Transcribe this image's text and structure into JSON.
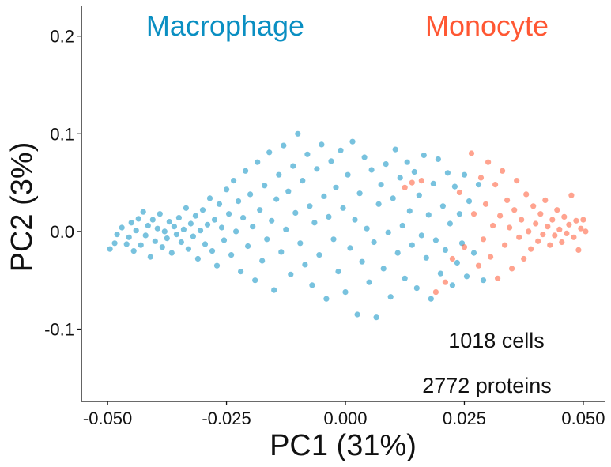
{
  "chart_data": {
    "type": "scatter",
    "title": "",
    "xlabel": "PC1  (31%)",
    "ylabel": "PC2  (3%)",
    "xlim": [
      -0.0555,
      0.0545
    ],
    "ylim": [
      -0.174,
      0.2305
    ],
    "x_ticks": [
      -0.05,
      -0.025,
      0.0,
      0.025,
      0.05
    ],
    "x_tick_labels": [
      "-0.050",
      "-0.025",
      "0.000",
      "0.025",
      "0.050"
    ],
    "y_ticks": [
      -0.1,
      0.0,
      0.1,
      0.2
    ],
    "y_tick_labels": [
      "-0.1",
      "0.0",
      "0.1",
      "0.2"
    ],
    "grid": false,
    "legend": "none",
    "point_opacity": 0.55,
    "series": [
      {
        "name": "Macrophage",
        "color": "#0a8fc2",
        "approx_count": 780,
        "points": [
          [
            -0.0495,
            -0.018
          ],
          [
            -0.0485,
            -0.012
          ],
          [
            -0.048,
            -0.003
          ],
          [
            -0.047,
            0.004
          ],
          [
            -0.046,
            -0.013
          ],
          [
            -0.0455,
            -0.006
          ],
          [
            -0.045,
            0.009
          ],
          [
            -0.0445,
            -0.02
          ],
          [
            -0.044,
            0.001
          ],
          [
            -0.0435,
            0.013
          ],
          [
            -0.043,
            -0.014
          ],
          [
            -0.0425,
            0.02
          ],
          [
            -0.042,
            -0.004
          ],
          [
            -0.0415,
            0.006
          ],
          [
            -0.041,
            -0.026
          ],
          [
            -0.0405,
            0.012
          ],
          [
            -0.04,
            -0.01
          ],
          [
            -0.0395,
            0.003
          ],
          [
            -0.039,
            0.018
          ],
          [
            -0.0385,
            -0.016
          ],
          [
            -0.038,
            0.0
          ],
          [
            -0.0375,
            -0.007
          ],
          [
            -0.037,
            0.01
          ],
          [
            -0.0365,
            -0.022
          ],
          [
            -0.036,
            0.005
          ],
          [
            -0.0355,
            -0.003
          ],
          [
            -0.035,
            0.014
          ],
          [
            -0.0345,
            -0.011
          ],
          [
            -0.034,
            0.002
          ],
          [
            -0.0335,
            0.024
          ],
          [
            -0.033,
            -0.018
          ],
          [
            -0.0325,
            0.008
          ],
          [
            -0.032,
            -0.005
          ],
          [
            -0.0315,
            0.016
          ],
          [
            -0.031,
            -0.028
          ],
          [
            -0.0305,
            0.001
          ],
          [
            -0.03,
            0.022
          ],
          [
            -0.0295,
            -0.013
          ],
          [
            -0.029,
            0.007
          ],
          [
            -0.0285,
            0.034
          ],
          [
            -0.028,
            -0.02
          ],
          [
            -0.0275,
            0.012
          ],
          [
            -0.027,
            -0.035
          ],
          [
            -0.0265,
            0.028
          ],
          [
            -0.026,
            0.004
          ],
          [
            -0.0255,
            -0.009
          ],
          [
            -0.025,
            0.043
          ],
          [
            -0.0245,
            0.018
          ],
          [
            -0.024,
            -0.024
          ],
          [
            -0.0235,
            0.052
          ],
          [
            -0.023,
            0.0
          ],
          [
            -0.0225,
            0.031
          ],
          [
            -0.022,
            -0.041
          ],
          [
            -0.0215,
            0.014
          ],
          [
            -0.021,
            0.062
          ],
          [
            -0.0205,
            -0.015
          ],
          [
            -0.02,
            0.038
          ],
          [
            -0.0195,
            0.005
          ],
          [
            -0.019,
            -0.05
          ],
          [
            -0.0185,
            0.071
          ],
          [
            -0.018,
            0.022
          ],
          [
            -0.0175,
            -0.03
          ],
          [
            -0.017,
            0.047
          ],
          [
            -0.0165,
            -0.008
          ],
          [
            -0.016,
            0.081
          ],
          [
            -0.0155,
            0.011
          ],
          [
            -0.015,
            -0.06
          ],
          [
            -0.0145,
            0.033
          ],
          [
            -0.014,
            0.058
          ],
          [
            -0.0135,
            -0.021
          ],
          [
            -0.013,
            0.088
          ],
          [
            -0.0125,
            0.002
          ],
          [
            -0.012,
            0.041
          ],
          [
            -0.0115,
            -0.044
          ],
          [
            -0.011,
            0.067
          ],
          [
            -0.0105,
            0.019
          ],
          [
            -0.01,
            0.1
          ],
          [
            -0.0095,
            -0.012
          ],
          [
            -0.009,
            0.052
          ],
          [
            -0.0085,
            -0.034
          ],
          [
            -0.008,
            0.079
          ],
          [
            -0.0075,
            0.026
          ],
          [
            -0.007,
            -0.055
          ],
          [
            -0.0065,
            0.009
          ],
          [
            -0.006,
            0.064
          ],
          [
            -0.0055,
            -0.024
          ],
          [
            -0.005,
            0.089
          ],
          [
            -0.0045,
            0.036
          ],
          [
            -0.004,
            -0.069
          ],
          [
            -0.0035,
            0.015
          ],
          [
            -0.003,
            0.072
          ],
          [
            -0.0025,
            -0.008
          ],
          [
            -0.002,
            0.045
          ],
          [
            -0.0015,
            -0.041
          ],
          [
            -0.001,
            0.083
          ],
          [
            -0.0005,
            0.024
          ],
          [
            0.0,
            -0.062
          ],
          [
            0.0005,
            0.058
          ],
          [
            0.001,
            -0.017
          ],
          [
            0.0015,
            0.092
          ],
          [
            0.002,
            0.012
          ],
          [
            0.0025,
            -0.085
          ],
          [
            0.003,
            0.039
          ],
          [
            0.0035,
            -0.031
          ],
          [
            0.004,
            0.076
          ],
          [
            0.0045,
            0.003
          ],
          [
            0.005,
            -0.052
          ],
          [
            0.0055,
            0.063
          ],
          [
            0.006,
            -0.011
          ],
          [
            0.0065,
            -0.088
          ],
          [
            0.007,
            0.028
          ],
          [
            0.0075,
            0.048
          ],
          [
            0.008,
            -0.038
          ],
          [
            0.0085,
            0.069
          ],
          [
            0.009,
            -0.001
          ],
          [
            0.0095,
            -0.067
          ],
          [
            0.01,
            0.034
          ],
          [
            0.0105,
            0.084
          ],
          [
            0.011,
            -0.022
          ],
          [
            0.0115,
            0.055
          ],
          [
            0.012,
            0.006
          ],
          [
            0.0125,
            -0.048
          ],
          [
            0.013,
            0.071
          ],
          [
            0.0135,
            0.021
          ],
          [
            0.014,
            -0.014
          ],
          [
            0.0145,
            0.061
          ],
          [
            0.015,
            -0.058
          ],
          [
            0.0155,
            0.037
          ],
          [
            0.016,
            -0.004
          ],
          [
            0.0165,
            0.078
          ],
          [
            0.017,
            -0.027
          ],
          [
            0.0175,
            0.017
          ],
          [
            0.018,
            -0.069
          ],
          [
            0.0185,
            0.049
          ],
          [
            0.019,
            -0.009
          ],
          [
            0.0195,
            0.074
          ],
          [
            0.02,
            -0.043
          ],
          [
            0.0205,
            0.026
          ],
          [
            0.021,
            -0.019
          ],
          [
            0.0215,
            0.06
          ],
          [
            0.022,
            0.008
          ],
          [
            0.0225,
            -0.055
          ],
          [
            0.023,
            0.046
          ],
          [
            0.0235,
            -0.032
          ],
          [
            0.024,
            0.018
          ],
          [
            0.0245,
            -0.012
          ],
          [
            0.025,
            0.058
          ],
          [
            0.0255,
            -0.046
          ],
          [
            0.026,
            0.031
          ],
          [
            0.027,
            -0.022
          ],
          [
            0.028,
            0.048
          ],
          [
            0.029,
            -0.05
          ]
        ]
      },
      {
        "name": "Monocyte",
        "color": "#ff5733",
        "approx_count": 238,
        "points": [
          [
            0.0125,
            0.045
          ],
          [
            0.014,
            0.05
          ],
          [
            0.016,
            0.052
          ],
          [
            0.019,
            -0.062
          ],
          [
            0.021,
            -0.052
          ],
          [
            0.0225,
            -0.028
          ],
          [
            0.024,
            0.04
          ],
          [
            0.025,
            -0.016
          ],
          [
            0.0265,
            0.08
          ],
          [
            0.027,
            0.018
          ],
          [
            0.028,
            -0.035
          ],
          [
            0.0285,
            0.055
          ],
          [
            0.029,
            -0.008
          ],
          [
            0.0295,
            0.028
          ],
          [
            0.03,
            0.071
          ],
          [
            0.0305,
            -0.026
          ],
          [
            0.031,
            0.006
          ],
          [
            0.0315,
            0.048
          ],
          [
            0.032,
            -0.048
          ],
          [
            0.0325,
            0.016
          ],
          [
            0.033,
            0.062
          ],
          [
            0.0335,
            -0.014
          ],
          [
            0.034,
            0.032
          ],
          [
            0.0345,
            0.004
          ],
          [
            0.035,
            -0.038
          ],
          [
            0.0355,
            0.022
          ],
          [
            0.036,
            0.052
          ],
          [
            0.0365,
            -0.006
          ],
          [
            0.037,
            0.012
          ],
          [
            0.0375,
            -0.028
          ],
          [
            0.038,
            0.038
          ],
          [
            0.0385,
            0.0
          ],
          [
            0.039,
            -0.018
          ],
          [
            0.0395,
            0.026
          ],
          [
            0.04,
            0.008
          ],
          [
            0.0405,
            -0.01
          ],
          [
            0.041,
            0.018
          ],
          [
            0.0415,
            -0.003
          ],
          [
            0.042,
            0.032
          ],
          [
            0.0425,
            0.005
          ],
          [
            0.043,
            -0.014
          ],
          [
            0.0435,
            0.012
          ],
          [
            0.044,
            -0.004
          ],
          [
            0.0445,
            0.022
          ],
          [
            0.045,
            0.002
          ],
          [
            0.0455,
            -0.011
          ],
          [
            0.046,
            0.015
          ],
          [
            0.0465,
            -0.002
          ],
          [
            0.047,
            0.007
          ],
          [
            0.0475,
            0.037
          ],
          [
            0.048,
            -0.006
          ],
          [
            0.0485,
            0.011
          ],
          [
            0.049,
            -0.019
          ],
          [
            0.0495,
            0.003
          ],
          [
            0.05,
            0.012
          ],
          [
            0.0505,
            0.0
          ]
        ]
      }
    ],
    "annotations": [
      "1018 cells",
      "2772 proteins"
    ]
  }
}
